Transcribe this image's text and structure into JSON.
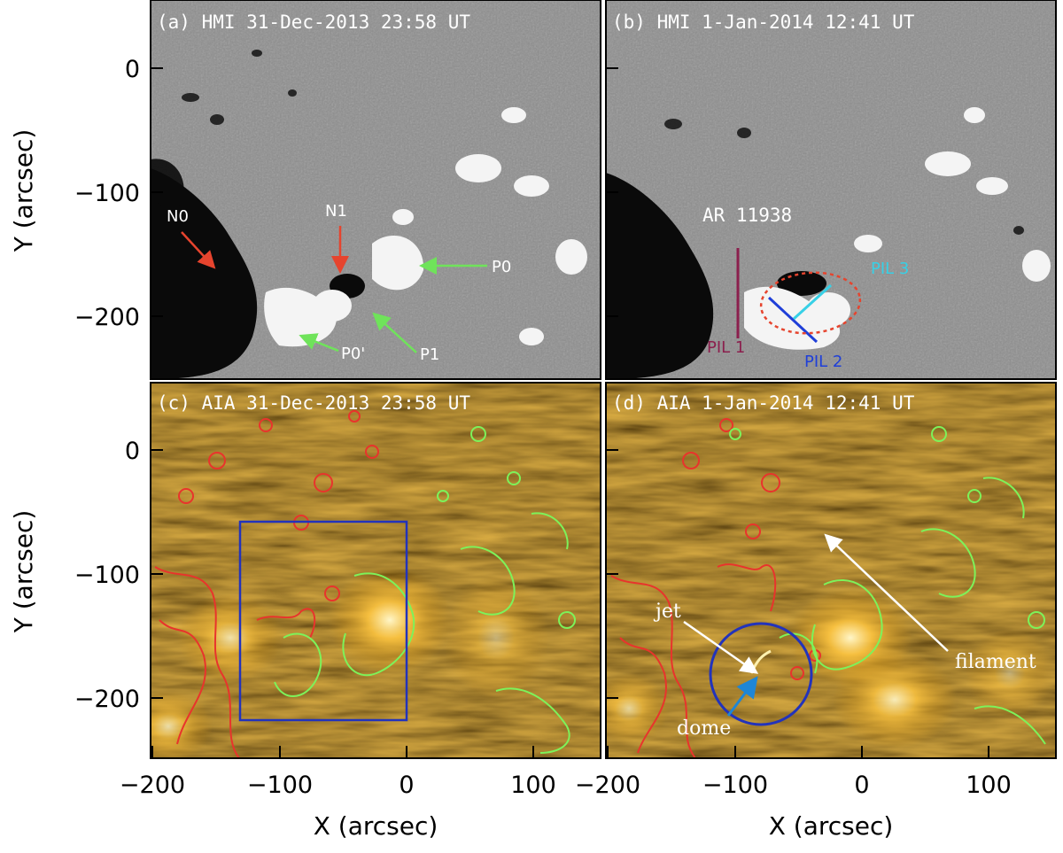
{
  "panels": {
    "a": {
      "title": "(a) HMI 31-Dec-2013 23:58 UT"
    },
    "b": {
      "title": "(b) HMI 1-Jan-2014 12:41 UT"
    },
    "c": {
      "title": "(c) AIA 31-Dec-2013 23:58 UT"
    },
    "d": {
      "title": "(d) AIA 1-Jan-2014 12:41 UT"
    }
  },
  "axes": {
    "ylabel": "Y (arcsec)",
    "xlabel": "X (arcsec)",
    "y_ticks": [
      "0",
      "−100",
      "−200"
    ],
    "x_ticks_left": [
      "−200",
      "−100",
      "0",
      "100"
    ],
    "x_ticks_right": [
      "−200",
      "−100",
      "0",
      "100"
    ]
  },
  "annotations": {
    "a": {
      "n0": "N0",
      "n1": "N1",
      "p0": "P0",
      "p0p": "P0'",
      "p1": "P1"
    },
    "b": {
      "ar": "AR 11938",
      "pil1": "PIL 1",
      "pil2": "PIL 2",
      "pil3": "PIL 3"
    },
    "d": {
      "jet": "jet",
      "dome": "dome",
      "filament": "filament"
    }
  },
  "colors": {
    "hmi_gray": "#8c8c8c",
    "aia_base": "#4a3206",
    "negative_contour": "#e8342c",
    "positive_contour": "#7df25a",
    "red_arrow": "#e6442e",
    "green_arrow": "#6fe35a",
    "pil1": "#8b1f4d",
    "pil2": "#1f3fd8",
    "pil3": "#37d0e6",
    "box": "#2233bb"
  }
}
